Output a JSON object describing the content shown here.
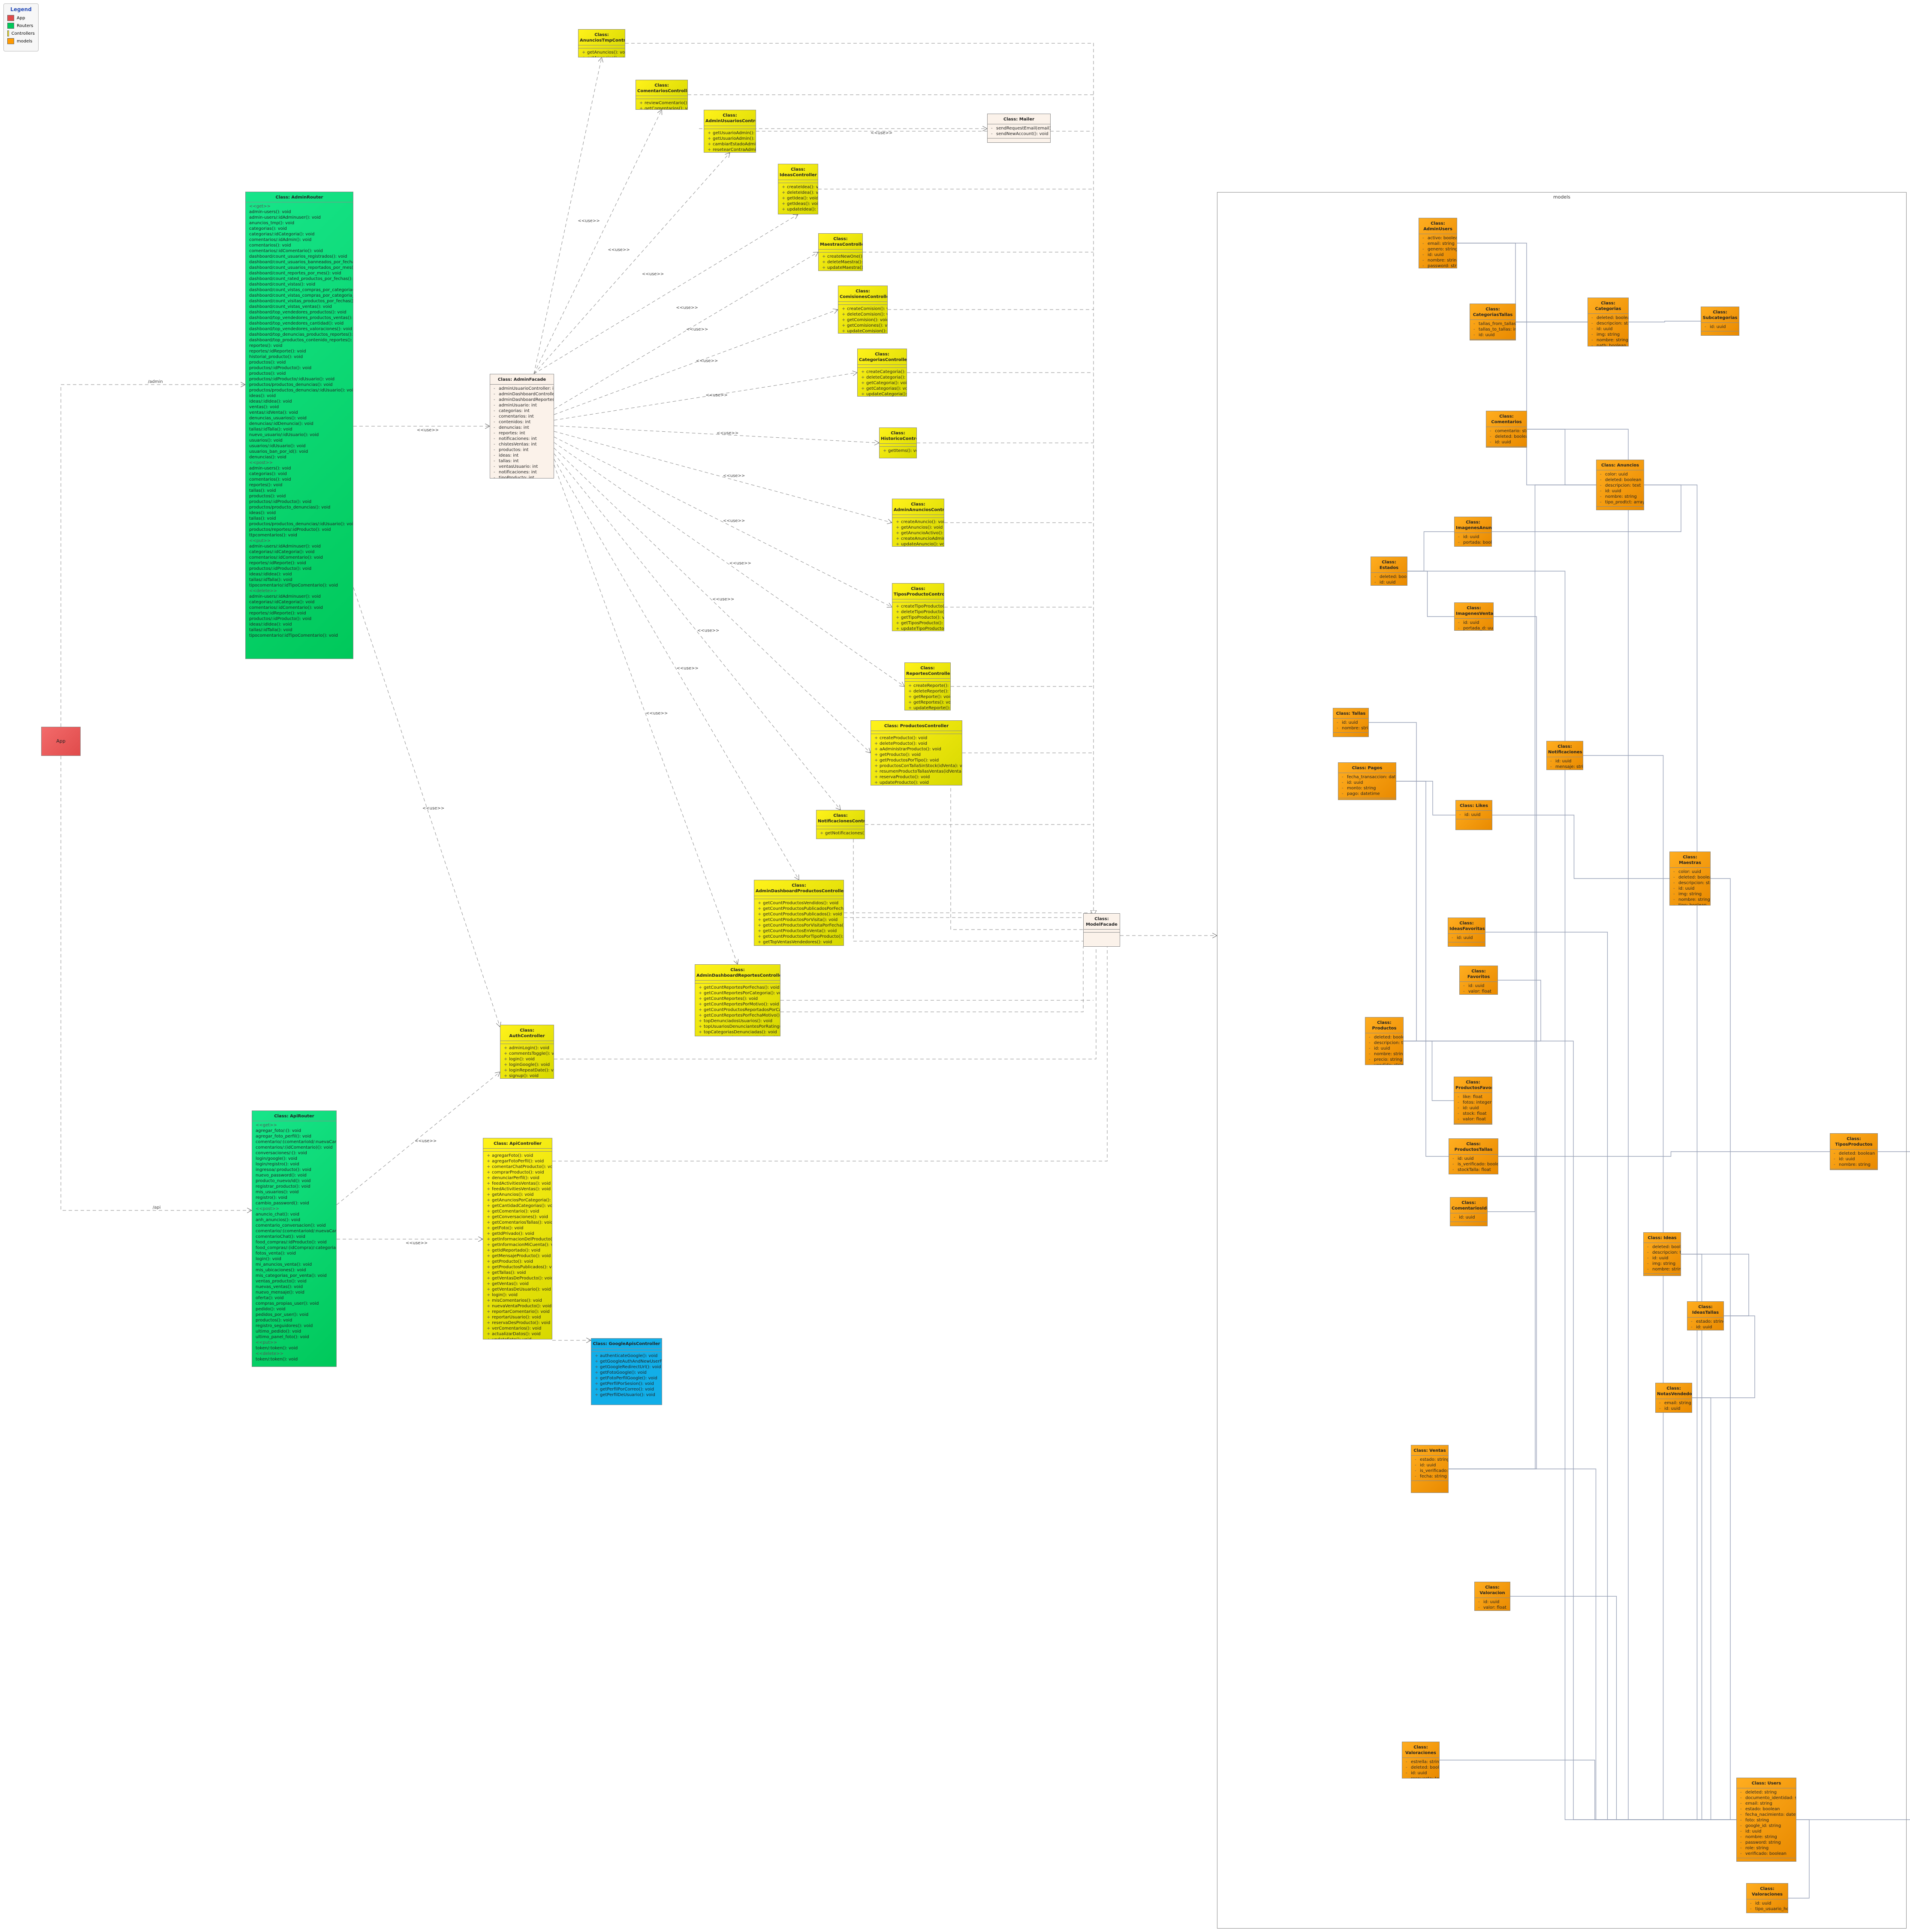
{
  "legend": {
    "title": "Legend",
    "items": [
      {
        "label": "App",
        "color": "#e04b4b"
      },
      {
        "label": "Routers",
        "color": "#00c85a"
      },
      {
        "label": "Controllers",
        "color": "#fff21a"
      },
      {
        "label": "models",
        "color": "#ff9a00"
      }
    ]
  },
  "package_title": "models",
  "app_label": "App",
  "edge_labels": {
    "routes": "<<use>>",
    "admin": "/admin",
    "api": "/api"
  },
  "classes": {
    "adminrouter": {
      "title": "Class: AdminRouter",
      "groups": [
        {
          "name": "<<get>>",
          "rows": [
            "admin-users(): void",
            "admin-users/:idAdminuser(): void",
            "anuncios_tmp(): void",
            "categorias(): void",
            "categorias/:idCategoria(): void",
            "comentarios/:idAdmin(): void",
            "comentarios(): void",
            "comentarios/:idComentario(): void",
            "dashboard/count_usuarios_registrados(): void",
            "dashboard/count_usuarios_banneados_por_fechas(): void",
            "dashboard/count_usuarios_reportados_por_mes(): void",
            "dashboard/count_reportes_por_mes(): void",
            "dashboard/count_rated_productos_por_fechas(): void",
            "dashboard/count_vistas(): void",
            "dashboard/count_vistas_compras_por_categoria(): void",
            "dashboard/count_vistas_compras_por_categoria_x(): void",
            "dashboard/count_visitas_productos_por_fechas(): void",
            "dashboard/count_vistas_ventas(): void",
            "dashboard/top_vendedores_productos(): void",
            "dashboard/top_vendedores_productos_ventas(): void",
            "dashboard/top_vendedores_cantidad(): void",
            "dashboard/top_vendedores_valoraciones(): void",
            "dashboard/top_denuncias_productos_reportes(): void",
            "dashboard/top_productos_contenido_reportes(): void",
            "reportes(): void",
            "reportes/:idReporte(): void",
            "historial_producto(): void",
            "productos(): void",
            "productos/:idProducto(): void",
            "productos(): void",
            "productos/:idProducto/:idUsuario(): void",
            "productos/productos_denuncias(): void",
            "productos/productos_denuncias/:idUsuario(): void",
            "ideas(): void",
            "ideas/:idIdea(): void",
            "ventas(): void",
            "ventas/:idVenta(): void",
            "denuncias_usuarios(): void",
            "denuncias/:idDenuncia(): void",
            "tallas/:idTalla(): void",
            "nuevo_usuario/:idUsuario(): void",
            "usuarios(): void",
            "usuarios/:idUsuario(): void",
            "usuarios_ban_por_id(): void",
            "denuncias(): void"
          ]
        },
        {
          "name": "<<post>>",
          "rows": [
            "admin-users(): void",
            "categorias(): void",
            "comentarios(): void",
            "reportes(): void",
            "tallas(): void",
            "productos(): void",
            "productos/:idProducto(): void",
            "productos/producto_denuncias(): void",
            "ideas(): void",
            "tallas(): void",
            "productos/productos_denuncias/:idUsuario(): void",
            "productos/reportes/:idProducto(): void",
            "ttpcomentarios(): void"
          ]
        },
        {
          "name": "<<put>>",
          "rows": [
            "admin-users/:idAdminuser(): void",
            "categorias/:idCategoria(): void",
            "comentarios/:idComentario(): void",
            "reportes/:idReporte(): void",
            "productos/:idProducto(): void",
            "ideas/:idIdea(): void",
            "tallas/:idTalla(): void",
            "tipocomentario/:idTipoComentario(): void"
          ]
        },
        {
          "name": "<<delete>>",
          "rows": [
            "admin-users/:idAdminuser(): void",
            "categorias/:idCategoria(): void",
            "comentarios/:idComentario(): void",
            "reportes/:idReporte(): void",
            "productos/:idProducto(): void",
            "ideas/:idIdea(): void",
            "tallas/:idTalla(): void",
            "tipocomentario/:idTipoComentario(): void"
          ]
        }
      ]
    },
    "apirouter": {
      "title": "Class: ApiRouter",
      "groups": [
        {
          "name": "<<get>>",
          "rows": [
            "agregar_foto/:(): void",
            "agregar_foto_perfil(): void",
            "comentario/:(comentarioId/:nuevaCantidad)(): void",
            "comentarios/:(idComentario)(): void",
            "conversaciones/:(): void",
            "login/google(): void",
            "login/registro(): void",
            "ingresoa/:producto(): void",
            "nuevo_password(): void",
            "producto_nuevo/id(): void",
            "registrar_producto(): void",
            "mis_usuarios(): void",
            "registro(): void",
            "cambio_password(): void"
          ]
        },
        {
          "name": "<<post>>",
          "rows": [
            "anuncio_chat(): void",
            "anh_anuncios(): void",
            "comentario_conversacion(): void",
            "comentario/:(comentarioId/:nuevaCantidad)(): void",
            "comentarioChat(): void",
            "food_compras/:idProducto(): void",
            "food_compras/:(idCompra)/:categoria(): void",
            "fotos_venta(): void",
            "login(): void",
            "mi_anuncios_venta(): void",
            "mis_ubicaciones(): void",
            "mis_categorias_por_venta(): void",
            "ventas_producto(): void",
            "nuevas_ventas(): void",
            "nuevo_mensaje(): void",
            "oferta(): void",
            "compras_propias_user(): void",
            "pedido(): void",
            "pedidos_por_user(): void",
            "productos(): void",
            "registro_seguidores(): void",
            "ultimo_pedido(): void",
            "ultimo_panel_foto(): void"
          ]
        },
        {
          "name": "<<put>>",
          "rows": [
            "token/:token(): void"
          ]
        },
        {
          "name": "<<delete>>",
          "rows": [
            "token/:token(): void"
          ]
        }
      ]
    },
    "adminfacade": {
      "title": "Class: AdminFacade",
      "rows": [
        "adminUsuarioController: int",
        "adminDashboardController: int",
        "adminDashboardReportesController: int",
        "adminUsuario: int",
        "categorias: int",
        "comentarios: int",
        "contenidos: int",
        "denuncias: int",
        "reportes: int",
        "notificaciones: int",
        "chistesVentas: int",
        "productos: int",
        "ideas: int",
        "tallas: int",
        "ventasUsuario: int",
        "notificaciones: int",
        "tipoProducto: int",
        "users: int"
      ]
    },
    "mailer": {
      "title": "Class: Mailer",
      "rows": [
        "sendRequestEmail(email): void",
        "sendNewAccount(): void"
      ]
    },
    "modelfacade": {
      "title": "Class: ModelFacade",
      "rows": []
    },
    "authcontroller": {
      "title": "Class: AuthController",
      "rows": [
        "adminLogin(): void",
        "commentsToggle(): void",
        "login(): void",
        "loginGoogle(): void",
        "loginRepeatDate(): void",
        "signup(): void"
      ]
    },
    "apicontroller": {
      "title": "Class: ApiController",
      "rows": [
        "agregarFoto(): void",
        "agregarFotoPerfil(): void",
        "comentarChatProducto(): void",
        "comprarProducto(): void",
        "denunciarPerfil(): void",
        "feedActivitiesVentas(): void",
        "feedActivitiesVentas(): void",
        "getAnuncios(): void",
        "getAnunciosPorCategoria(): void",
        "getCantidadCategorias(): void",
        "getComentario(): void",
        "getConversaciones(): void",
        "getComentariosTallas(): void",
        "getFoto(): void",
        "getIdPrivado(): void",
        "getInformacionDelProducto(): void",
        "getInformacionMiCuenta(): void",
        "getIdReportado(): void",
        "getMensajeProducto(): void",
        "getProducto(): void",
        "getProductosPublicados(): void",
        "getTallas(): void",
        "getVentasDeProducto(): void",
        "getVentas(): void",
        "getVentasDeUsuario(): void",
        "login(): void",
        "misComentarios(): void",
        "nuevaVentaProducto(): void",
        "reportarComentario(): void",
        "reportarUsuario(): void",
        "reservaDesProducto(): void",
        "verComentarios(): void",
        "actualizarDatos(): void",
        "updateFoto(): void"
      ]
    },
    "googleapis": {
      "title": "Class: GoogleApisController",
      "rows": [
        "authenticateGoogle(): void",
        "getGoogleAuthAndNewUserFromIdToken(): void",
        "getGoogleRedirectUrl(): void",
        "getFotoGoogle(): void",
        "getFotoPerfilGoogle(): void",
        "getPerfilPorSesion(): void",
        "getPerfilPorCorreo(): void",
        "getPerfilDeUsuario(): void"
      ]
    },
    "anunciostmp": {
      "title": "Class: AnunciosTmpController",
      "rows": [
        "getAnuncios(): void",
        "getAnuncios(): void"
      ]
    },
    "comentarioscontroller": {
      "title": "Class: ComentariosController",
      "rows": [
        "reviewComentario(): void",
        "getComentarios(): void"
      ]
    },
    "adminusuarios": {
      "title": "Class: AdminUsuariosController",
      "rows": [
        "getUsuarioAdmin(): void",
        "getUsuarioAdmin(): void",
        "cambiarEstadoAdmin(): void",
        "resetearContraAdmin(): void"
      ]
    },
    "ideascontroller": {
      "title": "Class: IdeasController",
      "rows": [
        "createIdea(): void",
        "deleteIdea(): void",
        "getIdea(): void",
        "getIdeas(): void",
        "updateIdea(): void"
      ]
    },
    "maestrascontroller": {
      "title": "Class: MaestrasController",
      "rows": [
        "createNewOne(): void",
        "deleteMaestra(): void",
        "updateMaestra(): void"
      ]
    },
    "comisiones": {
      "title": "Class: ComisionesController",
      "rows": [
        "createComision(): void",
        "deleteComision(): void",
        "getComision(): void",
        "getComisiones(): void",
        "updateComision(): void"
      ]
    },
    "categoriascontroller": {
      "title": "Class: CategoriasController",
      "rows": [
        "createCategoria(): void",
        "deleteCategoria(): void",
        "getCategoria(): void",
        "getCategorias(): void",
        "updateCategoria(): void"
      ]
    },
    "historicos": {
      "title": "Class: HistoricoController",
      "rows": [
        "getItems(): void"
      ]
    },
    "adminanuncios": {
      "title": "Class: AdminAnunciosController",
      "rows": [
        "createAnuncio(): void",
        "getAnuncios(): void",
        "getAnuncioActivo(): void",
        "createAnuncioAdmin(): void",
        "updateAnuncio(): void"
      ]
    },
    "tiposproducto": {
      "title": "Class: TiposProductoController",
      "rows": [
        "createTipoProducto(): void",
        "deleteTipoProducto(): void",
        "getTipoProducto(): void",
        "getTiposProducto(): void",
        "updateTipoProducto(): void"
      ]
    },
    "reportes": {
      "title": "Class: ReportesController",
      "rows": [
        "createReporte(): void",
        "deleteReporte(): void",
        "getReporte(): void",
        "getReportes(): void",
        "updateReporte(): void"
      ]
    },
    "productoscontroller": {
      "title": "Class: ProductosController",
      "rows": [
        "createProducto(): void",
        "deleteProducto(): void",
        "aAdministrarProducto(): void",
        "getProducto(): void",
        "getProductosPorTipo(): void",
        "productosConTallaSinStock(idVenta): void",
        "resumenProductoTallasVentas(idVenta): void",
        "reservaProducto(): void",
        "updateProducto(): void"
      ]
    },
    "notificaciones": {
      "title": "Class: NotificacionesController",
      "rows": [
        "getNotificaciones(): void"
      ]
    },
    "admindashboardproductos": {
      "title": "Class: AdminDashboardProductosController",
      "rows": [
        "getCountProductosVendidos(): void",
        "getCountProductosPublicadosPorFechas(): void",
        "getCountProductosPublicados(): void",
        "getCountProductosPorVisita(): void",
        "getCountProductosPorVisitaPorFecha(): void",
        "getCountProductosEnVenta(): void",
        "getCountProductosPorTipoProducto(): void",
        "getTopVentasVendedores(): void",
        "getTopVentasProductos(): void",
        "getTopVentasProductosPorRating(): void",
        "getTopVentasProductosPorCategoria(): void",
        "topVentasUsuarios(): void"
      ]
    },
    "admindashboardreportes": {
      "title": "Class: AdminDashboardReportesController",
      "rows": [
        "getCountReportesPorFechas(): void",
        "getCountReportesPorCategoria(): void",
        "getCountReportes(): void",
        "getCountReportesPorMotivo(): void",
        "getCountProductosReportadosPorCategoria(): void",
        "getCountReportesPorFechaMotivo(): void",
        "topDenunciadosUsuarios(): void",
        "topUsuariosDenunciantesPorRating(): void",
        "topCategoriasDenunciadas(): void",
        "topComentariosReportados(): void"
      ]
    },
    "m_adminusers": {
      "title": "Class: AdminUsers",
      "rows": [
        "activo: boolean",
        "email: string",
        "genero: string",
        "id: uuid",
        "nombre: string",
        "password: string"
      ]
    },
    "m_categoriastallas": {
      "title": "Class: CategoriasTallas",
      "rows": [
        "tallas_from_tallas",
        "tallas_to_tallas: integer",
        "id: uuid"
      ]
    },
    "m_categorias": {
      "title": "Class: Categorias",
      "rows": [
        "deleted: boolean",
        "descripcion: string",
        "id: uuid",
        "img: string",
        "nombre: string",
        "path: boolean"
      ]
    },
    "m_subcategorias": {
      "title": "Class: Subcategorias",
      "rows": [
        "id: uuid"
      ]
    },
    "m_comentarios": {
      "title": "Class: Comentarios",
      "rows": [
        "comentario: string",
        "deleted: boolean",
        "id: uuid"
      ]
    },
    "m_anuncios": {
      "title": "Class: Anuncios",
      "rows": [
        "color: uuid",
        "deleted: boolean",
        "descripcion: text",
        "id: uuid",
        "nombre: string",
        "tipo_prodtct: array"
      ]
    },
    "m_imagenesanuncios": {
      "title": "Class: ImagenesAnuncios",
      "rows": [
        "id: uuid",
        "portada: boolean"
      ]
    },
    "m_estados": {
      "title": "Class: Estados",
      "rows": [
        "deleted: boolean",
        "id: uuid",
        "nombre: string"
      ]
    },
    "m_imagenesventas": {
      "title": "Class: ImagenesVentas",
      "rows": [
        "id: uuid",
        "portada_d: uuid"
      ]
    },
    "m_tallas": {
      "title": "Class: Tallas",
      "rows": [
        "id: uuid",
        "nombre: string"
      ]
    },
    "m_notificaciones": {
      "title": "Class: Notificaciones",
      "rows": [
        "id: uuid",
        "mensaje: string"
      ]
    },
    "m_pagos": {
      "title": "Class: Pagos",
      "rows": [
        "fecha_transaccion: datetime",
        "id: uuid",
        "monto: string",
        "pago: datetime"
      ]
    },
    "m_likes": {
      "title": "Class: Likes",
      "rows": [
        "id: uuid"
      ]
    },
    "m_maestras": {
      "title": "Class: Maestras",
      "rows": [
        "color: uuid",
        "deleted: boolean",
        "descripcion: string",
        "id: uuid",
        "img: string",
        "nombre: string",
        "tipo: boolean"
      ]
    },
    "m_ideasfavoritas": {
      "title": "Class: IdeasFavoritas",
      "rows": [
        "id: uuid"
      ]
    },
    "m_favoritos": {
      "title": "Class: Favoritos",
      "rows": [
        "id: uuid",
        "valor: float"
      ]
    },
    "m_productos": {
      "title": "Class: Productos",
      "rows": [
        "deleted: boolean",
        "descripcion: text",
        "id: uuid",
        "nombre: string",
        "precio: string",
        "vendido: string"
      ]
    },
    "m_productosfavoritos": {
      "title": "Class: ProductosFavoritos",
      "rows": [
        "like: float",
        "fotos: integer",
        "id: uuid",
        "stock: float",
        "valor: float"
      ]
    },
    "m_productostallas": {
      "title": "Class: ProductosTallas",
      "rows": [
        "id: uuid",
        "is_verificado: boolean",
        "stockTalla: float"
      ]
    },
    "m_comentariosideas": {
      "title": "Class: ComentariosIdeas",
      "rows": [
        "id: uuid"
      ]
    },
    "m_ideas": {
      "title": "Class: Ideas",
      "rows": [
        "deleted: boolean",
        "descripcion: text",
        "id: uuid",
        "img: string",
        "nombre: string"
      ]
    },
    "m_ideastallas": {
      "title": "Class: IdeasTallas",
      "rows": [
        "estado: string",
        "id: uuid"
      ]
    },
    "m_notasvendedor": {
      "title": "Class: NotasVendedor",
      "rows": [
        "email: string",
        "id: uuid"
      ]
    },
    "m_ventas": {
      "title": "Class: Ventas",
      "rows": [
        "estado: string",
        "id: uuid",
        "is_verificado: boolean",
        "fecha: string"
      ]
    },
    "m_valoraciones": {
      "title": "Class: Valoraciones",
      "rows": [
        "estrella: string",
        "deleted: boolean",
        "id: uuid",
        "respuesta: text",
        "revision: text"
      ]
    },
    "m_valoracion": {
      "title": "Class: Valoracion",
      "rows": [
        "id: uuid",
        "valor: float"
      ]
    },
    "m_tiposproductos": {
      "title": "Class: TiposProductos",
      "rows": [
        "deleted: boolean",
        "id: uuid",
        "nombre: string"
      ]
    },
    "m_users": {
      "title": "Class: Users",
      "rows": [
        "deleted: string",
        "documento_identidad: string",
        "email: string",
        "estado: boolean",
        "fecha_nacimiento: datetime",
        "foto: string",
        "google_id: string",
        "id: uuid",
        "nombre: string",
        "password: string",
        "role: string",
        "verificado: boolean"
      ]
    },
    "m_valoraciones2": {
      "title": "Class: Valoraciones",
      "rows": [
        "id: uuid",
        "tipo_usuario_host: boolean",
        "valor_usuario: float"
      ]
    }
  }
}
